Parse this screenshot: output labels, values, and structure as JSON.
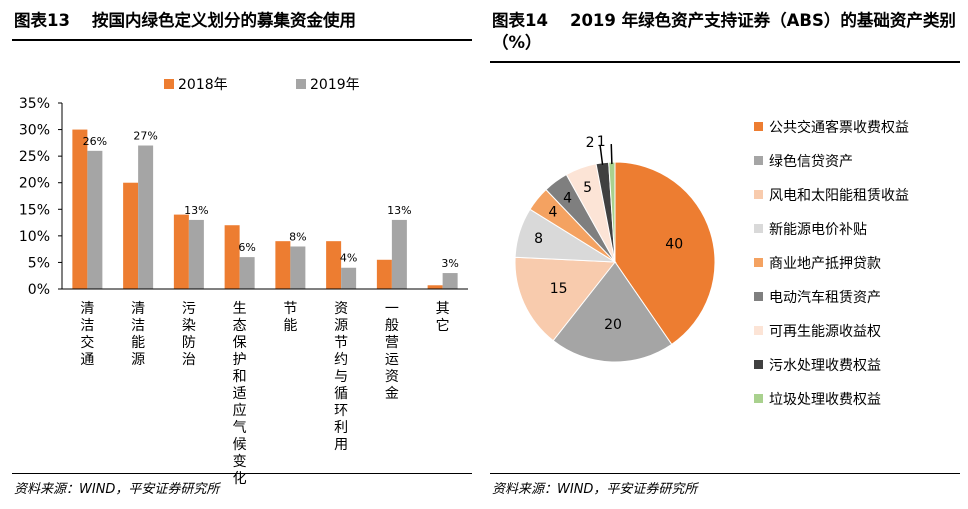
{
  "left": {
    "fig_no": "图表13",
    "title": "按国内绿色定义划分的募集资金使用",
    "source": "资料来源：WIND，平安证券研究所"
  },
  "right": {
    "fig_no": "图表14",
    "title": "2019 年绿色资产支持证券（ABS）的基础资产类别（%）",
    "source": "资料来源：WIND，平安证券研究所"
  },
  "chart_data": [
    {
      "type": "bar",
      "categories": [
        "清洁交通",
        "清洁能源",
        "污染防治",
        "生态保护和适应气候变化",
        "节能",
        "资源节约与循环利用",
        "一般营运资金",
        "其它"
      ],
      "series": [
        {
          "name": "2018年",
          "values": [
            30,
            20,
            14,
            12,
            9,
            9,
            5.5,
            0.7
          ],
          "color": "#ED7D31"
        },
        {
          "name": "2019年",
          "values": [
            26,
            27,
            13,
            6,
            8,
            4,
            13,
            3
          ],
          "color": "#A5A5A5"
        }
      ],
      "data_labels": [
        "26%",
        "27%",
        "13%",
        "6%",
        "8%",
        "4%",
        "13%",
        "3%"
      ],
      "ylim": [
        0,
        35
      ],
      "yticks": [
        "0%",
        "5%",
        "10%",
        "15%",
        "20%",
        "25%",
        "30%",
        "35%"
      ],
      "legend_position": "top"
    },
    {
      "type": "pie",
      "labels": [
        "公共交通客票收费权益",
        "绿色信贷资产",
        "风电和太阳能租赁收益",
        "新能源电价补贴",
        "商业地产抵押贷款",
        "电动汽车租赁资产",
        "可再生能源收益权",
        "污水处理收费权益",
        "垃圾处理收费权益"
      ],
      "values": [
        40,
        20,
        15,
        8,
        4,
        4,
        5,
        2,
        1
      ],
      "value_labels": [
        "40",
        "20",
        "15",
        "8",
        "4",
        "4",
        "5",
        "2",
        "1"
      ],
      "colors": [
        "#ED7D31",
        "#A5A5A5",
        "#F8CBAD",
        "#D9D9D9",
        "#F4A261",
        "#7F7F7F",
        "#FCE4D6",
        "#404040",
        "#A9D18E"
      ],
      "legend_position": "right"
    }
  ]
}
